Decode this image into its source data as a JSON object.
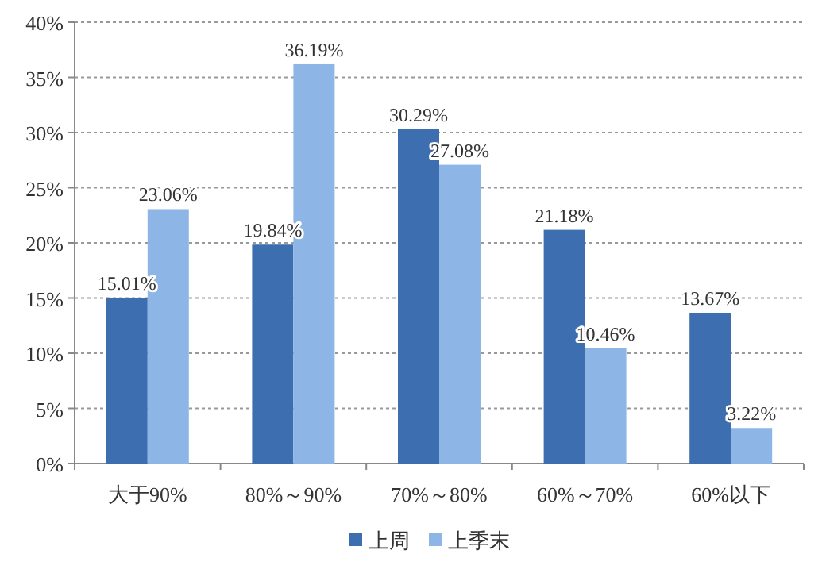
{
  "chart_data": {
    "type": "bar",
    "categories": [
      "大于90%",
      "80%～90%",
      "70%～80%",
      "60%～70%",
      "60%以下"
    ],
    "series": [
      {
        "name": "上周",
        "color": "#3d6fb0",
        "values": [
          15.01,
          19.84,
          30.29,
          21.18,
          13.67
        ],
        "value_labels": [
          "15.01%",
          "19.84%",
          "30.29%",
          "21.18%",
          "13.67%"
        ]
      },
      {
        "name": "上季末",
        "color": "#8db6e6",
        "values": [
          23.06,
          36.19,
          27.08,
          10.46,
          3.22
        ],
        "value_labels": [
          "23.06%",
          "36.19%",
          "27.08%",
          "10.46%",
          "3.22%"
        ]
      }
    ],
    "ylim": [
      0,
      40
    ],
    "yticks": [
      {
        "value": 0,
        "label": "0%"
      },
      {
        "value": 5,
        "label": "5%"
      },
      {
        "value": 10,
        "label": "10%"
      },
      {
        "value": 15,
        "label": "15%"
      },
      {
        "value": 20,
        "label": "20%"
      },
      {
        "value": 25,
        "label": "25%"
      },
      {
        "value": 30,
        "label": "30%"
      },
      {
        "value": 35,
        "label": "35%"
      },
      {
        "value": 40,
        "label": "40%"
      }
    ],
    "grid": "y",
    "legend": "bottom"
  }
}
